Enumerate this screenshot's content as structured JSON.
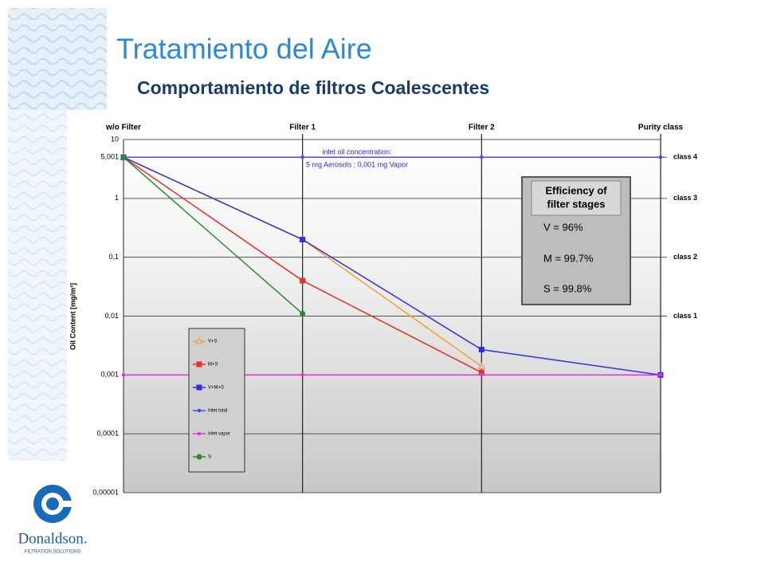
{
  "header": {
    "title": "Tratamiento  del Aire",
    "subtitle": "Comportamiento de filtros Coalescentes"
  },
  "logo": {
    "name": "Donaldson.",
    "tagline": "FILTRATION SOLUTIONS"
  },
  "chart_data": {
    "type": "line",
    "categories": [
      "w/o Filter",
      "Filter 1",
      "Filter 2",
      "Purity class"
    ],
    "y_label": "Oil Content [mg/m³]",
    "log_scale": true,
    "ylim": [
      1e-05,
      10
    ],
    "yticks": [
      10,
      {
        "value": 5.001,
        "label": "5,001"
      },
      1,
      {
        "value": 0.1,
        "label": "0,1"
      },
      {
        "value": 0.01,
        "label": "0,01"
      },
      {
        "value": 0.001,
        "label": "0,001"
      },
      {
        "value": 0.0001,
        "label": "0,0001"
      },
      {
        "value": 1e-05,
        "label": "0,00001"
      }
    ],
    "grid": true,
    "purity_classes": [
      {
        "label": "class 4",
        "value": 5
      },
      {
        "label": "class 3",
        "value": 1
      },
      {
        "label": "class 2",
        "value": 0.1
      },
      {
        "label": "class 1",
        "value": 0.01
      }
    ],
    "annotation": [
      "inlet oil concentration:",
      "5 mg Aerosols ; 0,001 mg Vapor"
    ],
    "efficiency_box": {
      "title": [
        "Efficiency of",
        "filter stages"
      ],
      "lines": [
        "V = 96%",
        "M = 99.7%",
        "S = 99.8%"
      ]
    },
    "series": [
      {
        "name": "V+S",
        "color": "#f5a030",
        "marker": "triangle",
        "values": [
          5.001,
          0.2,
          0.0014,
          null
        ]
      },
      {
        "name": "M+S",
        "color": "#e8302a",
        "marker": "square",
        "values": [
          5.001,
          0.04,
          0.0011,
          null
        ]
      },
      {
        "name": "V+M+S",
        "color": "#3030e0",
        "marker": "square",
        "values": [
          5.001,
          0.2,
          0.0027,
          0.001
        ]
      },
      {
        "name": "Inlet total",
        "color": "#4a4ae8",
        "marker": "dot",
        "values": [
          5.001,
          5.001,
          5.001,
          5.001
        ]
      },
      {
        "name": "Inlet vapor",
        "color": "#e830e0",
        "marker": "dot",
        "values": [
          0.001,
          0.001,
          0.001,
          0.001
        ]
      },
      {
        "name": "S",
        "color": "#2a8a2a",
        "marker": "circle",
        "values": [
          5.001,
          0.011,
          null,
          null
        ]
      }
    ]
  }
}
